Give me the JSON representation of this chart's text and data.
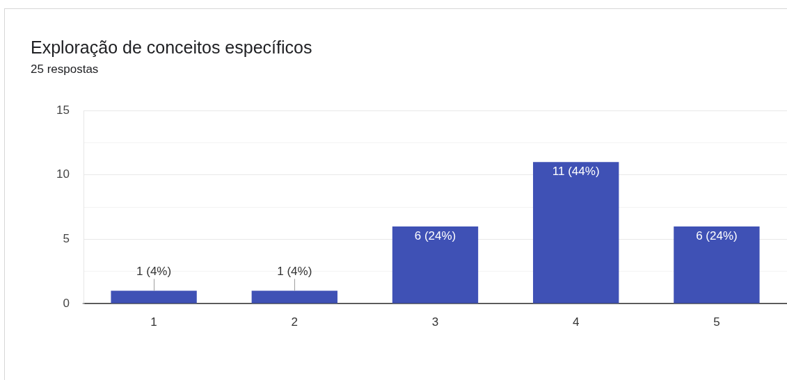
{
  "chart_data": {
    "type": "bar",
    "title": "Exploração de conceitos específicos",
    "subtitle": "25 respostas",
    "categories": [
      "1",
      "2",
      "3",
      "4",
      "5"
    ],
    "values": [
      1,
      1,
      6,
      11,
      6
    ],
    "color": "#3f51b5",
    "value_labels": [
      "1 (4%)",
      "1 (4%)",
      "6 (24%)",
      "11 (44%)",
      "6 (24%)"
    ],
    "ylim": [
      0,
      15
    ],
    "yticks": [
      0,
      {
        "value": 2.5,
        "label": null
      },
      5,
      {
        "value": 7.5,
        "label": null
      },
      10,
      {
        "value": 12.5,
        "label": null
      },
      15
    ],
    "grid": "y"
  }
}
